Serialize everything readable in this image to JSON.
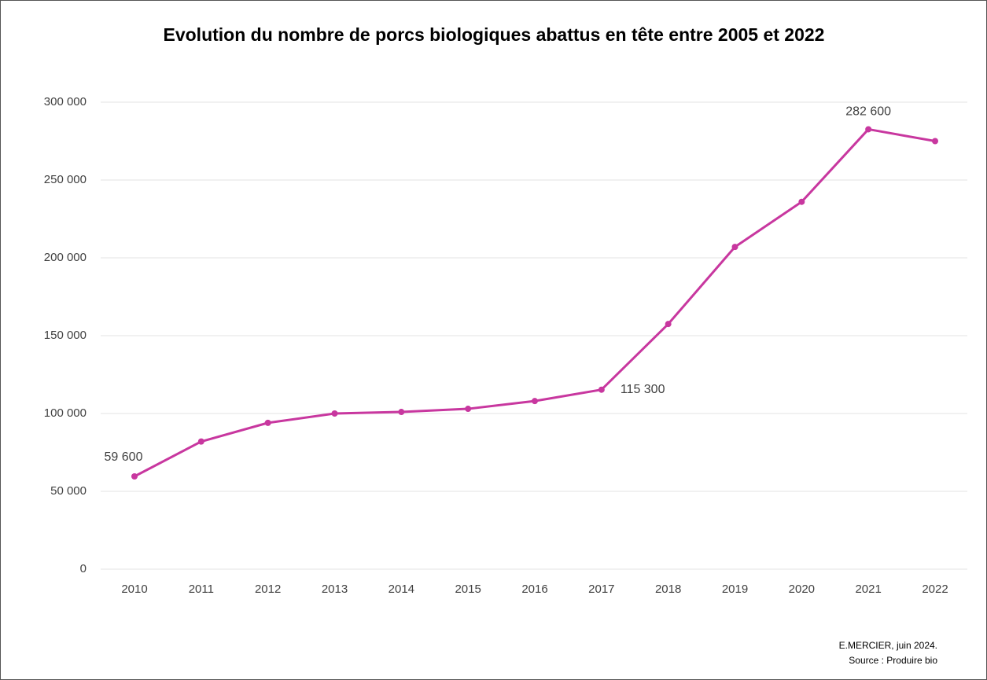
{
  "chart_data": {
    "type": "line",
    "title": "Evolution du nombre de porcs biologiques abattus en tête entre 2005 et 2022",
    "categories": [
      "2010",
      "2011",
      "2012",
      "2013",
      "2014",
      "2015",
      "2016",
      "2017",
      "2018",
      "2019",
      "2020",
      "2021",
      "2022"
    ],
    "series": [
      {
        "color": "#c8379f",
        "values": [
          59600,
          82000,
          94000,
          100000,
          101000,
          103000,
          108000,
          115300,
          157500,
          207000,
          236000,
          282600,
          275000
        ],
        "value_labels": [
          "59 600",
          null,
          null,
          null,
          null,
          null,
          null,
          "115 300",
          null,
          null,
          null,
          "282 600",
          null
        ]
      }
    ],
    "ylim": [
      0,
      300000
    ],
    "yticks": [
      0,
      {
        "value": 50000,
        "label": "50 000"
      },
      {
        "value": 100000,
        "label": "100 000"
      },
      {
        "value": 150000,
        "label": "150 000"
      },
      {
        "value": 200000,
        "label": "200 000"
      },
      {
        "value": 250000,
        "label": "250 000"
      },
      {
        "value": 300000,
        "label": "300 000"
      }
    ],
    "grid": true,
    "source": [
      "E.MERCIER, juin 2024.",
      "Source : Produire bio"
    ]
  }
}
